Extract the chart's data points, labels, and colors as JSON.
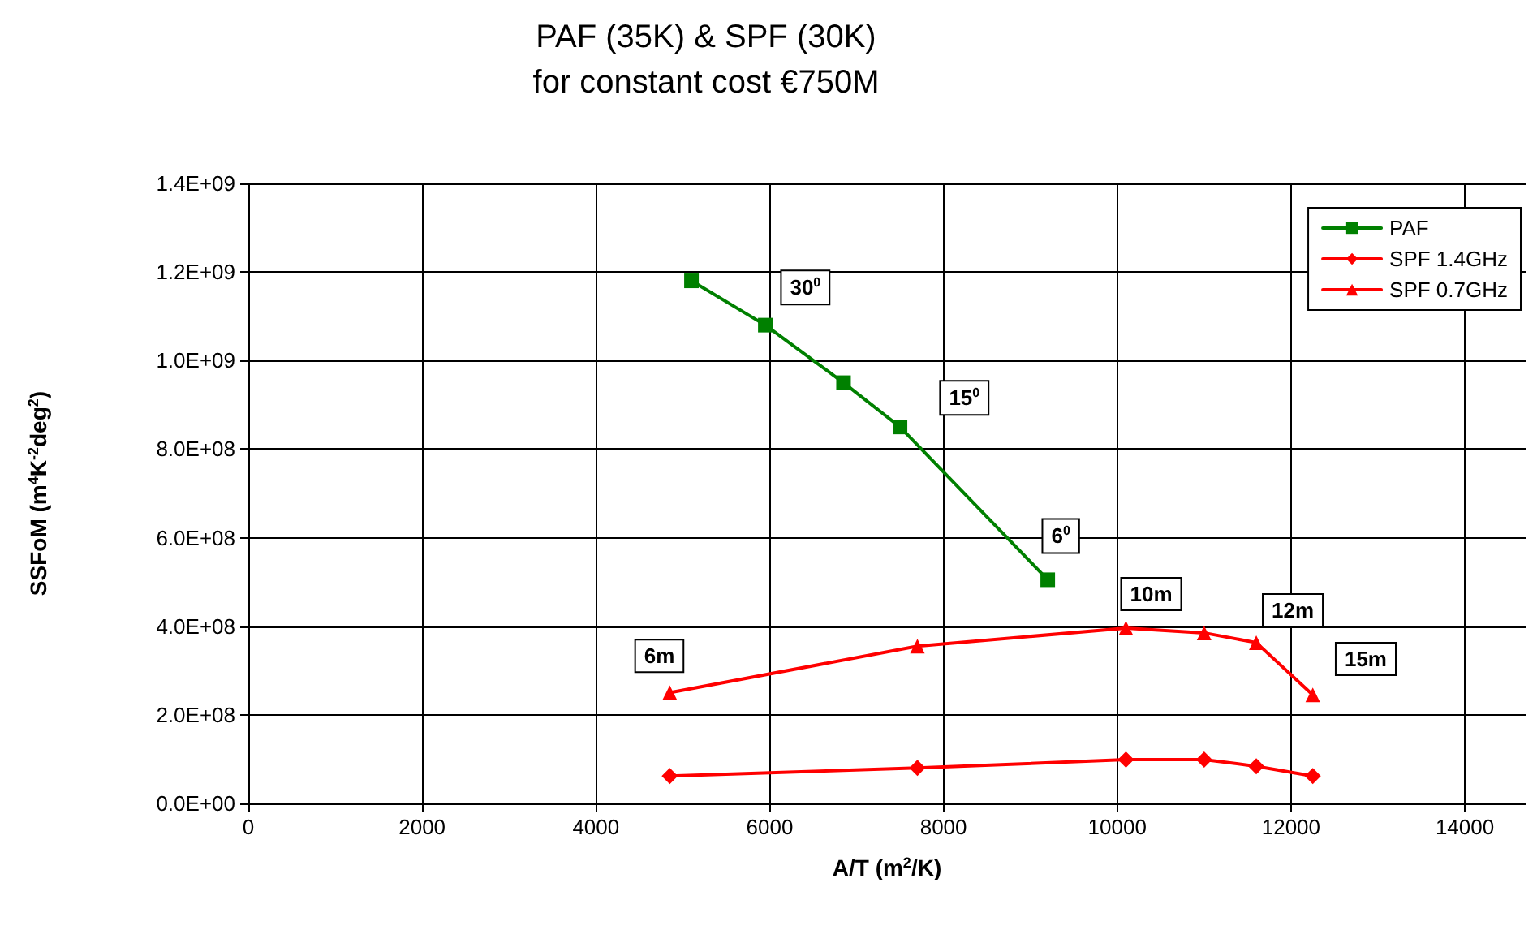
{
  "chart_data": {
    "type": "line",
    "title": "PAF (35K) & SPF (30K)",
    "subtitle": "for constant cost €750M",
    "xlabel": "A/T (m$^{2}$/K)",
    "ylabel": "SSFoM (m$^{4}$K$^{-2}$deg$^{2}$)",
    "xlim": [
      0,
      14700
    ],
    "xticks": [
      0,
      2000,
      4000,
      6000,
      8000,
      10000,
      12000,
      14000
    ],
    "ylim": [
      0,
      1400000000
    ],
    "yticks": [
      {
        "value": 0,
        "label": "0.0E+00"
      },
      {
        "value": 200000000,
        "label": "2.0E+08"
      },
      {
        "value": 400000000,
        "label": "4.0E+08"
      },
      {
        "value": 600000000,
        "label": "6.0E+08"
      },
      {
        "value": 800000000,
        "label": "8.0E+08"
      },
      {
        "value": 1000000000,
        "label": "1.0E+09"
      },
      {
        "value": 1200000000,
        "label": "1.2E+09"
      },
      {
        "value": 1400000000,
        "label": "1.4E+09"
      }
    ],
    "grid": true,
    "legend": "top right",
    "line_style": "solid",
    "series": [
      {
        "name": "PAF",
        "color": "#008000",
        "marker": "square",
        "x": [
          5100,
          5950,
          6850,
          7500,
          9200
        ],
        "values": [
          1180000000,
          1080000000,
          950000000,
          850000000,
          505000000
        ]
      },
      {
        "name": "SPF 1.4GHz",
        "color": "#ff0000",
        "marker": "diamond",
        "x": [
          4850,
          7700,
          10100,
          11000,
          11600,
          12250
        ],
        "values": [
          62000000,
          80000000,
          99000000,
          99000000,
          84000000,
          62000000
        ]
      },
      {
        "name": "SPF 0.7GHz",
        "color": "#ff0000",
        "marker": "triangle",
        "x": [
          4850,
          7700,
          10100,
          11000,
          11600,
          12250
        ],
        "values": [
          250000000,
          355000000,
          396000000,
          385000000,
          363000000,
          245000000
        ]
      }
    ],
    "annotations": [
      {
        "text": "30$^{0}$",
        "x": 6410,
        "y": 1165000000
      },
      {
        "text": "15$^{0}$",
        "x": 8240,
        "y": 916000000
      },
      {
        "text": "6$^{0}$",
        "x": 9350,
        "y": 604000000
      },
      {
        "text": "6m",
        "x": 4730,
        "y": 333000000
      },
      {
        "text": "10m",
        "x": 10390,
        "y": 473000000
      },
      {
        "text": "12m",
        "x": 12020,
        "y": 436000000
      },
      {
        "text": "15m",
        "x": 12860,
        "y": 326000000
      }
    ]
  }
}
